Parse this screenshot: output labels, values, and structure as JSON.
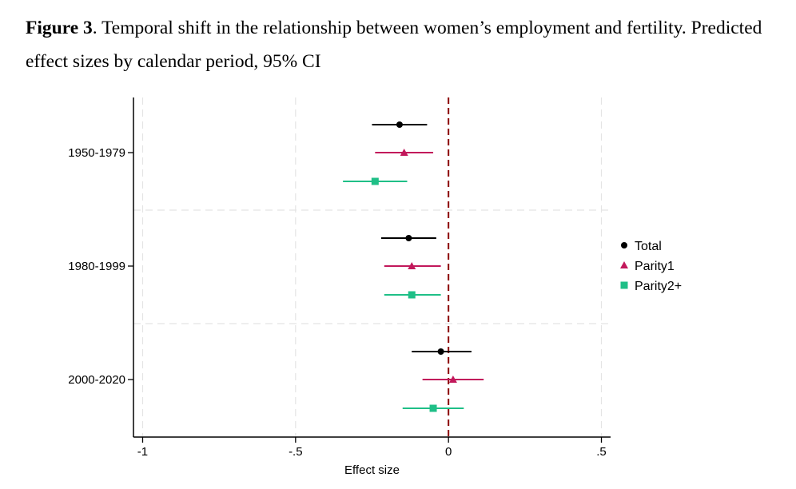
{
  "caption": {
    "label": "Figure 3",
    "text": ". Temporal shift in the relationship between women’s employment and fertility. Predicted effect sizes by calendar period, 95% CI"
  },
  "chart_data": {
    "type": "scatter",
    "orientation": "horizontal-coefficient-plot",
    "xlabel": "Effect size",
    "ylabel": "",
    "xlim": [
      -1.03,
      0.53
    ],
    "xticks": [
      -1,
      -0.5,
      0,
      0.5
    ],
    "xtick_labels": [
      "-1",
      "-.5",
      "0",
      ".5"
    ],
    "reference_line": {
      "x": 0,
      "color": "#8b0000",
      "style": "dashed"
    },
    "grid": true,
    "legend_position": "right",
    "categories": [
      "1950-1979",
      "1980-1999",
      "2000-2020"
    ],
    "series": [
      {
        "name": "Total",
        "color": "#000000",
        "marker": "circle",
        "estimates": [
          -0.16,
          -0.13,
          -0.025
        ],
        "ci_low": [
          -0.25,
          -0.22,
          -0.12
        ],
        "ci_high": [
          -0.07,
          -0.04,
          0.075
        ]
      },
      {
        "name": "Parity1",
        "color": "#c2185b",
        "marker": "triangle",
        "estimates": [
          -0.145,
          -0.12,
          0.015
        ],
        "ci_low": [
          -0.24,
          -0.21,
          -0.085
        ],
        "ci_high": [
          -0.05,
          -0.025,
          0.115
        ]
      },
      {
        "name": "Parity2+",
        "color": "#1fbf87",
        "marker": "square",
        "estimates": [
          -0.24,
          -0.12,
          -0.05
        ],
        "ci_low": [
          -0.345,
          -0.21,
          -0.15
        ],
        "ci_high": [
          -0.135,
          -0.025,
          0.05
        ]
      }
    ]
  }
}
